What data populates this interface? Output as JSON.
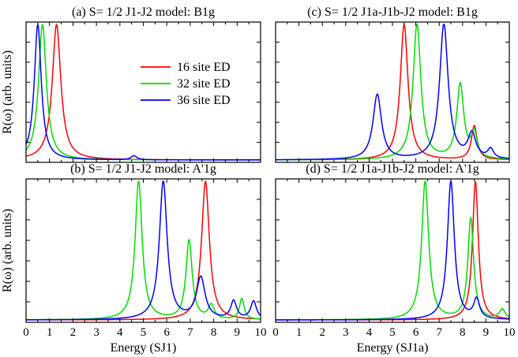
{
  "chart_data": [
    {
      "type": "line",
      "title": "(a) S= 1/2 J1-J2 model: B1g",
      "ylabel": "R(ω) (arb. units)",
      "xlabel": "",
      "xlim": [
        0,
        10
      ],
      "xticks": [
        "0",
        "1",
        "2",
        "3",
        "4",
        "5",
        "6",
        "7",
        "8",
        "9",
        "10"
      ],
      "show_xtick_labels": false,
      "series": [
        {
          "name": "16 site ED",
          "color": "#ff0000",
          "peaks": [
            [
              1.3,
              1.0,
              0.22
            ]
          ]
        },
        {
          "name": "32 site ED",
          "color": "#00dd00",
          "peaks": [
            [
              0.7,
              1.0,
              0.2
            ]
          ]
        },
        {
          "name": "36 site ED",
          "color": "#0000ff",
          "peaks": [
            [
              0.5,
              1.0,
              0.18
            ],
            [
              4.6,
              0.03,
              0.15
            ]
          ]
        }
      ]
    },
    {
      "type": "line",
      "title": "(b) S= 1/2 J1-J2 model: A'1g",
      "ylabel": "R(ω) (arb. units)",
      "xlabel": "Energy (SJ1)",
      "xlim": [
        0,
        10
      ],
      "xticks": [
        "0",
        "1",
        "2",
        "3",
        "4",
        "5",
        "6",
        "7",
        "8",
        "9",
        "10"
      ],
      "show_xtick_labels": true,
      "series": [
        {
          "name": "16 site ED",
          "color": "#ff0000",
          "peaks": [
            [
              7.65,
              1.0,
              0.2
            ]
          ]
        },
        {
          "name": "32 site ED",
          "color": "#00dd00",
          "peaks": [
            [
              4.8,
              1.0,
              0.18
            ],
            [
              6.95,
              0.57,
              0.16
            ],
            [
              7.9,
              0.1,
              0.15
            ],
            [
              9.2,
              0.15,
              0.12
            ]
          ]
        },
        {
          "name": "36 site ED",
          "color": "#0000ff",
          "peaks": [
            [
              5.85,
              1.0,
              0.2
            ],
            [
              7.45,
              0.3,
              0.22
            ],
            [
              8.85,
              0.13,
              0.15
            ],
            [
              9.7,
              0.13,
              0.15
            ]
          ]
        }
      ]
    },
    {
      "type": "line",
      "title": "(c) S= 1/2 J1a-J1b-J2 model: B1g",
      "ylabel": "",
      "xlabel": "",
      "xlim": [
        0,
        10
      ],
      "xticks": [
        "0",
        "1",
        "2",
        "3",
        "4",
        "5",
        "6",
        "7",
        "8",
        "9",
        "10"
      ],
      "show_xtick_labels": false,
      "series": [
        {
          "name": "16 site ED",
          "color": "#ff0000",
          "peaks": [
            [
              5.5,
              1.0,
              0.2
            ],
            [
              8.5,
              0.25,
              0.15
            ]
          ]
        },
        {
          "name": "32 site ED",
          "color": "#00dd00",
          "peaks": [
            [
              6.05,
              1.0,
              0.2
            ],
            [
              7.9,
              0.55,
              0.18
            ],
            [
              8.5,
              0.18,
              0.15
            ]
          ]
        },
        {
          "name": "36 site ED",
          "color": "#0000ff",
          "peaks": [
            [
              4.35,
              0.48,
              0.22
            ],
            [
              7.2,
              1.0,
              0.22
            ],
            [
              8.4,
              0.18,
              0.2
            ],
            [
              9.2,
              0.07,
              0.15
            ]
          ]
        }
      ]
    },
    {
      "type": "line",
      "title": "(d) S= 1/2 J1a-J1b-J2 model: A'1g",
      "ylabel": "",
      "xlabel": "Energy (SJ1a)",
      "xlim": [
        0,
        10
      ],
      "xticks": [
        "0",
        "1",
        "2",
        "3",
        "4",
        "5",
        "6",
        "7",
        "8",
        "9",
        "10"
      ],
      "show_xtick_labels": true,
      "series": [
        {
          "name": "16 site ED",
          "color": "#ff0000",
          "peaks": [
            [
              8.55,
              1.0,
              0.15
            ]
          ]
        },
        {
          "name": "32 site ED",
          "color": "#00dd00",
          "peaks": [
            [
              6.4,
              1.0,
              0.18
            ],
            [
              8.35,
              0.73,
              0.15
            ],
            [
              9.7,
              0.07,
              0.15
            ]
          ]
        },
        {
          "name": "36 site ED",
          "color": "#0000ff",
          "peaks": [
            [
              7.5,
              1.0,
              0.18
            ],
            [
              8.6,
              0.14,
              0.15
            ]
          ]
        }
      ]
    }
  ],
  "legend": {
    "entries": [
      {
        "label": "16 site ED",
        "color": "#ff0000"
      },
      {
        "label": "32 site ED",
        "color": "#00dd00"
      },
      {
        "label": "36 site ED",
        "color": "#0000ff"
      }
    ],
    "placement": "inside panel (a), right"
  }
}
